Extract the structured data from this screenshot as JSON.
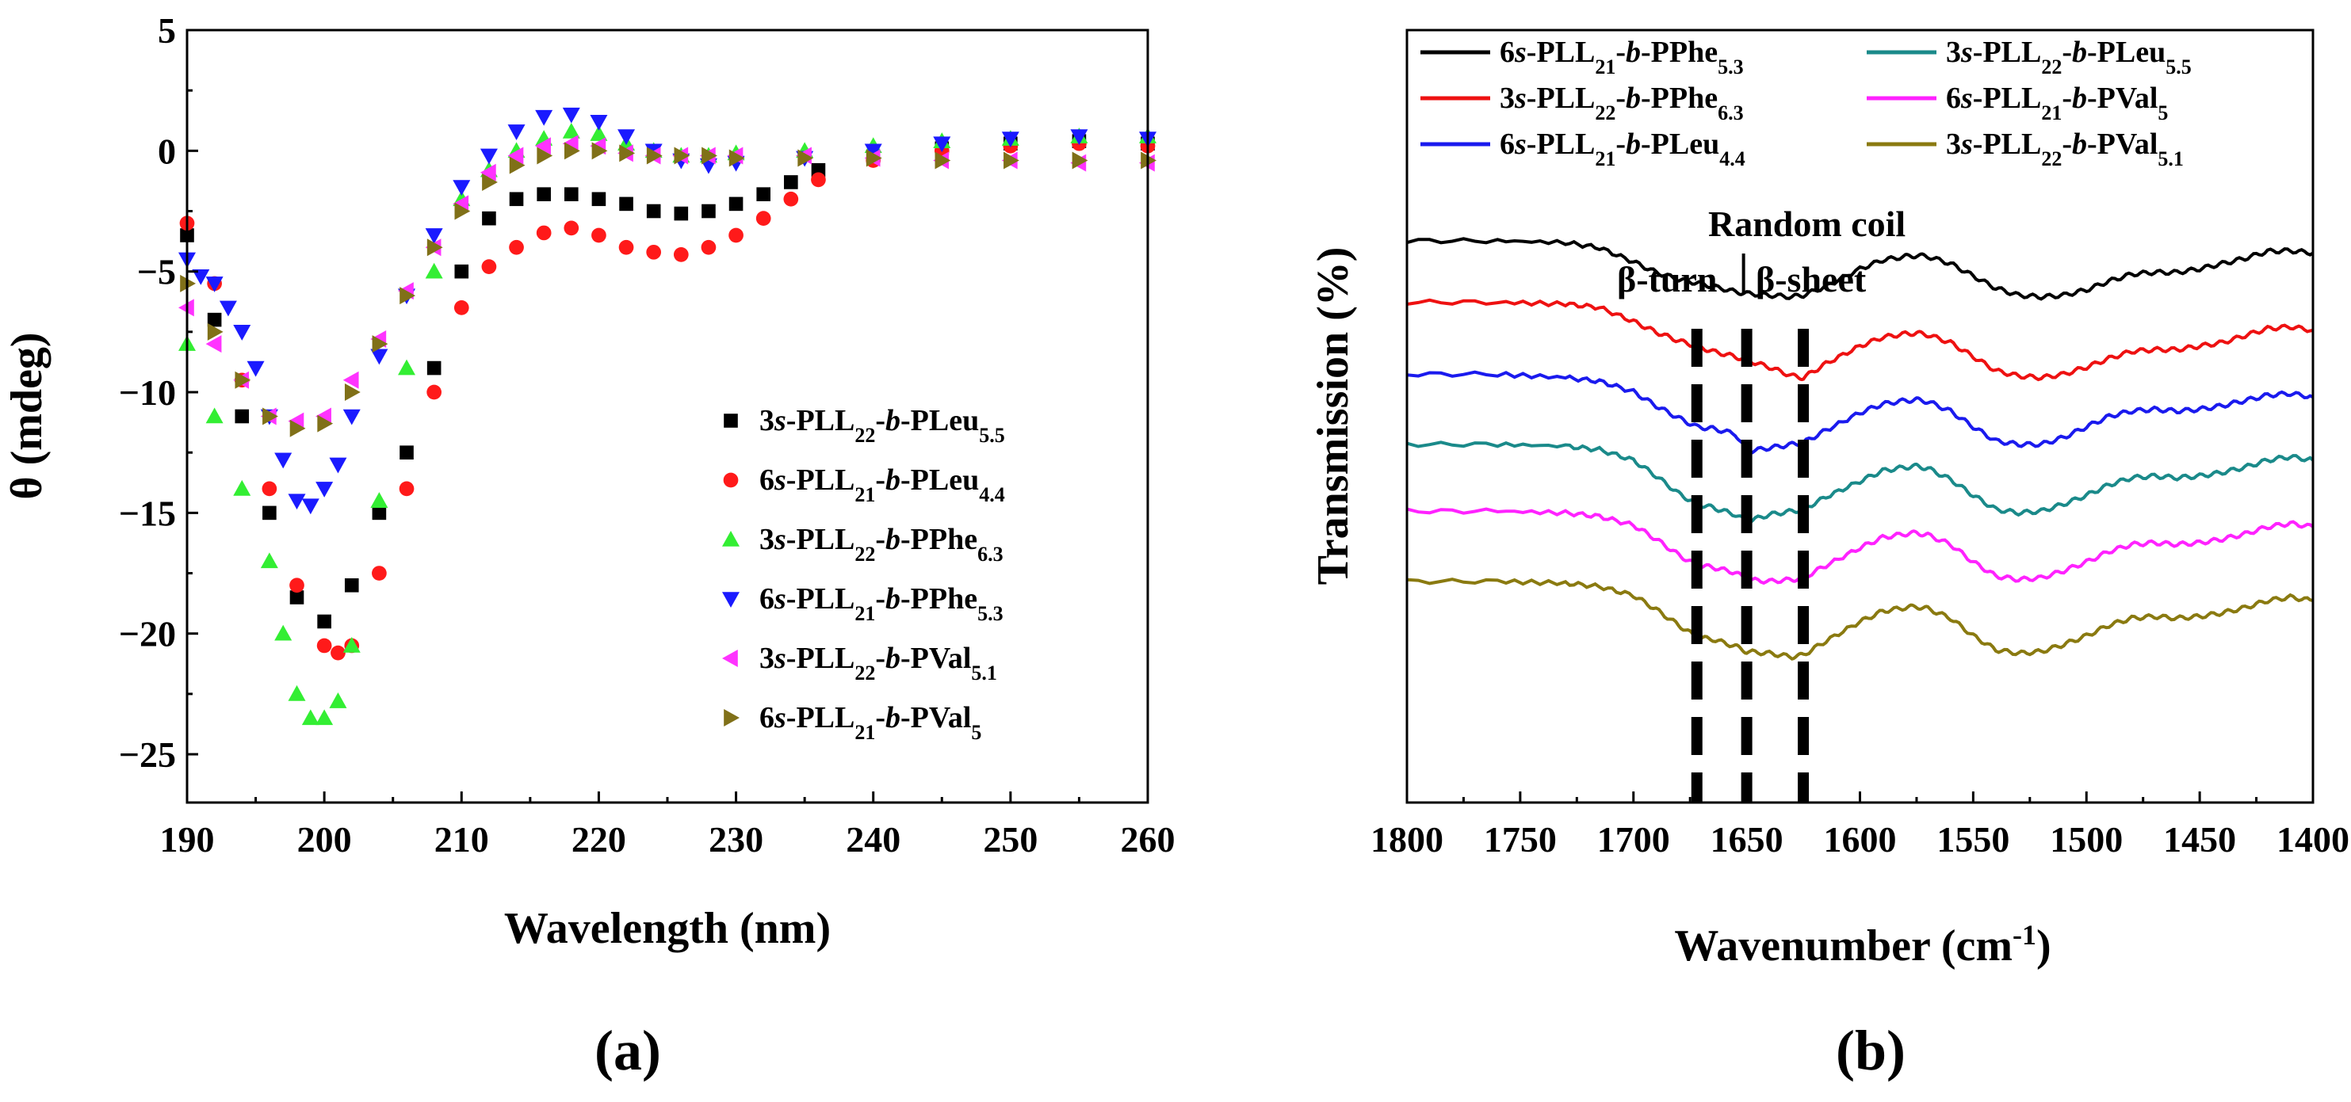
{
  "chart_data": [
    {
      "panel": "a",
      "panel_label": "(a)",
      "type": "scatter",
      "xlabel": "Wavelength (nm)",
      "ylabel": "θ (mdeg)",
      "xlim": [
        190,
        260
      ],
      "ylim": [
        -27,
        5
      ],
      "xticks": [
        "190",
        "200",
        "210",
        "220",
        "230",
        "240",
        "250",
        "260"
      ],
      "yticks": [
        "5",
        "0",
        "-5",
        "-10",
        "-15",
        "-20",
        "-25"
      ],
      "grid": false,
      "legend_position": "bottom-right",
      "series": [
        {
          "id": "s1",
          "base": "3",
          "italic": "s",
          "mid1": "-PLL",
          "sub1": "22",
          "mid2": "-",
          "italic2": "b",
          "mid3": "-PLeu",
          "sub2": "5.5",
          "color": "#000000",
          "marker": "square",
          "x": [
            190,
            192,
            194,
            196,
            198,
            200,
            202,
            204,
            206,
            208,
            210,
            212,
            214,
            216,
            218,
            220,
            222,
            224,
            226,
            228,
            230,
            232,
            234,
            236,
            240,
            245,
            250,
            255,
            260
          ],
          "y": [
            -3.5,
            -7,
            -11,
            -15,
            -18.5,
            -19.5,
            -18,
            -15,
            -12.5,
            -9,
            -5,
            -2.8,
            -2,
            -1.8,
            -1.8,
            -2,
            -2.2,
            -2.5,
            -2.6,
            -2.5,
            -2.2,
            -1.8,
            -1.3,
            -0.8,
            -0.3,
            0.1,
            0.3,
            0.4,
            0.3
          ]
        },
        {
          "id": "s2",
          "base": "6",
          "italic": "s",
          "mid1": "-PLL",
          "sub1": "21",
          "mid2": "-",
          "italic2": "b",
          "mid3": "-PLeu",
          "sub2": "4.4",
          "color": "#ff1a1a",
          "marker": "circle",
          "x": [
            190,
            192,
            194,
            196,
            198,
            200,
            201,
            202,
            204,
            206,
            208,
            210,
            212,
            214,
            216,
            218,
            220,
            222,
            224,
            226,
            228,
            230,
            232,
            234,
            236,
            240,
            245,
            250,
            255,
            260
          ],
          "y": [
            -3,
            -5.5,
            -9.5,
            -14,
            -18,
            -20.5,
            -20.8,
            -20.5,
            -17.5,
            -14,
            -10,
            -6.5,
            -4.8,
            -4,
            -3.4,
            -3.2,
            -3.5,
            -4,
            -4.2,
            -4.3,
            -4,
            -3.5,
            -2.8,
            -2,
            -1.2,
            -0.4,
            0,
            0.2,
            0.3,
            0.2
          ]
        },
        {
          "id": "s3",
          "base": "3",
          "italic": "s",
          "mid1": "-PLL",
          "sub1": "22",
          "mid2": "-",
          "italic2": "b",
          "mid3": "-PPhe",
          "sub2": "6.3",
          "color": "#33ee33",
          "marker": "triangle-up",
          "x": [
            190,
            192,
            194,
            196,
            197,
            198,
            199,
            200,
            201,
            202,
            204,
            206,
            208,
            210,
            212,
            214,
            216,
            218,
            220,
            222,
            224,
            226,
            228,
            230,
            235,
            240,
            245,
            250,
            255,
            260
          ],
          "y": [
            -8,
            -11,
            -14,
            -17,
            -20,
            -22.5,
            -23.5,
            -23.5,
            -22.8,
            -20.5,
            -14.5,
            -9,
            -5,
            -2,
            -0.8,
            0,
            0.5,
            0.8,
            0.7,
            0.3,
            0,
            -0.2,
            -0.2,
            -0.1,
            0,
            0.2,
            0.4,
            0.5,
            0.6,
            0.6
          ]
        },
        {
          "id": "s4",
          "base": "6",
          "italic": "s",
          "mid1": "-PLL",
          "sub1": "21",
          "mid2": "-",
          "italic2": "b",
          "mid3": "-PPhe",
          "sub2": "5.3",
          "color": "#1a1aff",
          "marker": "triangle-down",
          "x": [
            190,
            191,
            192,
            193,
            194,
            195,
            196,
            197,
            198,
            199,
            200,
            201,
            202,
            204,
            206,
            208,
            210,
            212,
            214,
            216,
            218,
            220,
            222,
            224,
            226,
            228,
            230,
            235,
            240,
            245,
            250,
            255,
            260
          ],
          "y": [
            -4.5,
            -5.2,
            -5.5,
            -6.5,
            -7.5,
            -9,
            -11,
            -12.8,
            -14.5,
            -14.7,
            -14,
            -13,
            -11,
            -8.5,
            -6,
            -3.5,
            -1.5,
            -0.2,
            0.8,
            1.4,
            1.5,
            1.2,
            0.6,
            0,
            -0.4,
            -0.6,
            -0.5,
            -0.3,
            0,
            0.3,
            0.5,
            0.6,
            0.5
          ]
        },
        {
          "id": "s5",
          "base": "3",
          "italic": "s",
          "mid1": "-PLL",
          "sub1": "22",
          "mid2": "-",
          "italic2": "b",
          "mid3": "-PVal",
          "sub2": "5.1",
          "color": "#ff33ff",
          "marker": "triangle-left",
          "x": [
            190,
            192,
            194,
            196,
            198,
            200,
            202,
            204,
            206,
            208,
            210,
            212,
            214,
            216,
            218,
            220,
            222,
            224,
            226,
            228,
            230,
            235,
            240,
            245,
            250,
            255,
            260
          ],
          "y": [
            -6.5,
            -8,
            -9.5,
            -11,
            -11.2,
            -11,
            -9.5,
            -7.8,
            -5.8,
            -4,
            -2.2,
            -0.9,
            -0.2,
            0.2,
            0.3,
            0.2,
            -0.1,
            -0.2,
            -0.2,
            -0.2,
            -0.2,
            -0.2,
            -0.3,
            -0.4,
            -0.4,
            -0.5,
            -0.5
          ]
        },
        {
          "id": "s6",
          "base": "6",
          "italic": "s",
          "mid1": "-PLL",
          "sub1": "21",
          "mid2": "-",
          "italic2": "b",
          "mid3": "-PVal",
          "sub2": "5",
          "color": "#807018",
          "marker": "triangle-right",
          "x": [
            190,
            192,
            194,
            196,
            198,
            200,
            202,
            204,
            206,
            208,
            210,
            212,
            214,
            216,
            218,
            220,
            222,
            224,
            226,
            228,
            230,
            235,
            240,
            245,
            250,
            255,
            260
          ],
          "y": [
            -5.5,
            -7.5,
            -9.5,
            -11,
            -11.5,
            -11.3,
            -10,
            -8,
            -6,
            -4,
            -2.5,
            -1.3,
            -0.6,
            -0.2,
            0,
            0,
            -0.1,
            -0.2,
            -0.2,
            -0.2,
            -0.3,
            -0.3,
            -0.3,
            -0.4,
            -0.4,
            -0.4,
            -0.4
          ]
        }
      ]
    },
    {
      "panel": "b",
      "panel_label": "(b)",
      "type": "line",
      "xlabel_main": "Wavenumber (cm",
      "xlabel_sup": "-1",
      "xlabel_end": ")",
      "ylabel": "Transmission (%)",
      "xlim": [
        1800,
        1400
      ],
      "xticks": [
        "1800",
        "1750",
        "1700",
        "1650",
        "1600",
        "1550",
        "1500",
        "1450",
        "1400"
      ],
      "yticks": [],
      "grid": false,
      "legend_position": "top",
      "annotations": [
        {
          "text": "Random coil",
          "x": 1650
        },
        {
          "text": "β-turn",
          "x": 1672
        },
        {
          "text": "β-sheet",
          "x": 1628
        }
      ],
      "vlines": [
        1672,
        1650,
        1625
      ],
      "shape_x": [
        1800,
        1760,
        1730,
        1715,
        1700,
        1690,
        1680,
        1672,
        1665,
        1655,
        1650,
        1640,
        1630,
        1625,
        1615,
        1600,
        1590,
        1580,
        1575,
        1570,
        1560,
        1550,
        1540,
        1530,
        1520,
        1510,
        1500,
        1490,
        1480,
        1470,
        1460,
        1450,
        1440,
        1430,
        1420,
        1410,
        1400
      ],
      "series": [
        {
          "id": "b1",
          "base": "6",
          "italic": "s",
          "mid1": "-PLL",
          "sub1": "21",
          "mid2": "-",
          "italic2": "b",
          "mid3": "-PPhe",
          "sub2": "5.3",
          "color": "#000000",
          "y": [
            100,
            100,
            99.5,
            98,
            94,
            91,
            89,
            88,
            87,
            85.5,
            85,
            84.5,
            84,
            84.5,
            87,
            92,
            94.5,
            95.5,
            95.8,
            95.5,
            93.5,
            90,
            86.5,
            84.5,
            84,
            84.5,
            86,
            88.5,
            90.5,
            91,
            91,
            92,
            93.5,
            95,
            97,
            97.2,
            96.5
          ]
        },
        {
          "id": "b2",
          "base": "3",
          "italic": "s",
          "mid1": "-PLL",
          "sub1": "22",
          "mid2": "-",
          "italic2": "b",
          "mid3": "-PPhe",
          "sub2": "6.3",
          "color": "#ee1111",
          "y": [
            82.5,
            82.5,
            82,
            81,
            77,
            74,
            71.5,
            70,
            68.5,
            67,
            66,
            64,
            61.5,
            61,
            65,
            70,
            72.5,
            73.5,
            73.7,
            73.2,
            71,
            67,
            63,
            61.5,
            61,
            62,
            64,
            66.5,
            68.5,
            69,
            69,
            70,
            71,
            73,
            75,
            75.5,
            74.5
          ]
        },
        {
          "id": "b3",
          "base": "6",
          "italic": "s",
          "mid1": "-PLL",
          "sub1": "21",
          "mid2": "-",
          "italic2": "b",
          "mid3": "-PLeu",
          "sub2": "4.4",
          "color": "#1a1aee",
          "y": [
            62,
            62,
            61,
            60,
            57,
            53,
            49.5,
            47,
            46.5,
            45,
            40,
            41,
            42,
            42.5,
            46,
            51,
            53.5,
            54.5,
            54.7,
            54.2,
            51.5,
            47,
            43,
            42,
            42,
            44,
            47,
            50,
            51.5,
            52,
            51.5,
            52,
            53,
            54.5,
            56,
            56.5,
            55.5
          ]
        },
        {
          "id": "b4",
          "base": "3",
          "italic": "s",
          "mid1": "-PLL",
          "sub1": "22",
          "mid2": "-",
          "italic2": "b",
          "mid3": "-PLeu",
          "sub2": "5.5",
          "color": "#1a8a8a",
          "y": [
            42,
            42,
            41.5,
            40.5,
            37.5,
            33,
            28,
            25,
            24,
            22,
            20,
            22,
            23,
            23.5,
            27,
            31.5,
            34.5,
            35.5,
            35.8,
            35.2,
            32,
            27.5,
            23.5,
            22.5,
            23,
            25,
            27.5,
            30.5,
            32.5,
            33,
            32.5,
            33,
            34,
            35.5,
            37.5,
            38.5,
            37.5
          ]
        },
        {
          "id": "b5",
          "base": "6",
          "italic": "s",
          "mid1": "-PLL",
          "sub1": "21",
          "mid2": "-",
          "italic2": "b",
          "mid3": "-PVal",
          "sub2": "5",
          "color": "#ff22ff",
          "y": [
            23,
            23,
            22.5,
            21.5,
            19,
            15,
            10.5,
            7.5,
            7,
            5.5,
            3.5,
            3,
            3.5,
            4,
            7.5,
            12.5,
            15.5,
            16.5,
            16.8,
            16.2,
            13.5,
            8.5,
            4.5,
            3.5,
            4,
            6,
            8.5,
            11.5,
            13.5,
            14,
            13.5,
            14,
            15,
            16.5,
            18.5,
            19.5,
            18.5
          ]
        },
        {
          "id": "b6",
          "base": "3",
          "italic": "s",
          "mid1": "-PLL",
          "sub1": "22",
          "mid2": "-",
          "italic2": "b",
          "mid3": "-PVal",
          "sub2": "5.1",
          "color": "#8a7a10",
          "y": [
            3,
            3,
            2.5,
            1.5,
            -1,
            -5,
            -9.5,
            -13,
            -13.5,
            -15.5,
            -17,
            -17.5,
            -18.5,
            -18,
            -14,
            -8.5,
            -5.5,
            -4.5,
            -4.2,
            -4.8,
            -7.5,
            -12.5,
            -16.5,
            -17.5,
            -17,
            -15,
            -12.5,
            -9.5,
            -7.5,
            -7,
            -7.5,
            -7,
            -6,
            -4.5,
            -2.5,
            -1.5,
            -2.5
          ]
        }
      ]
    }
  ]
}
